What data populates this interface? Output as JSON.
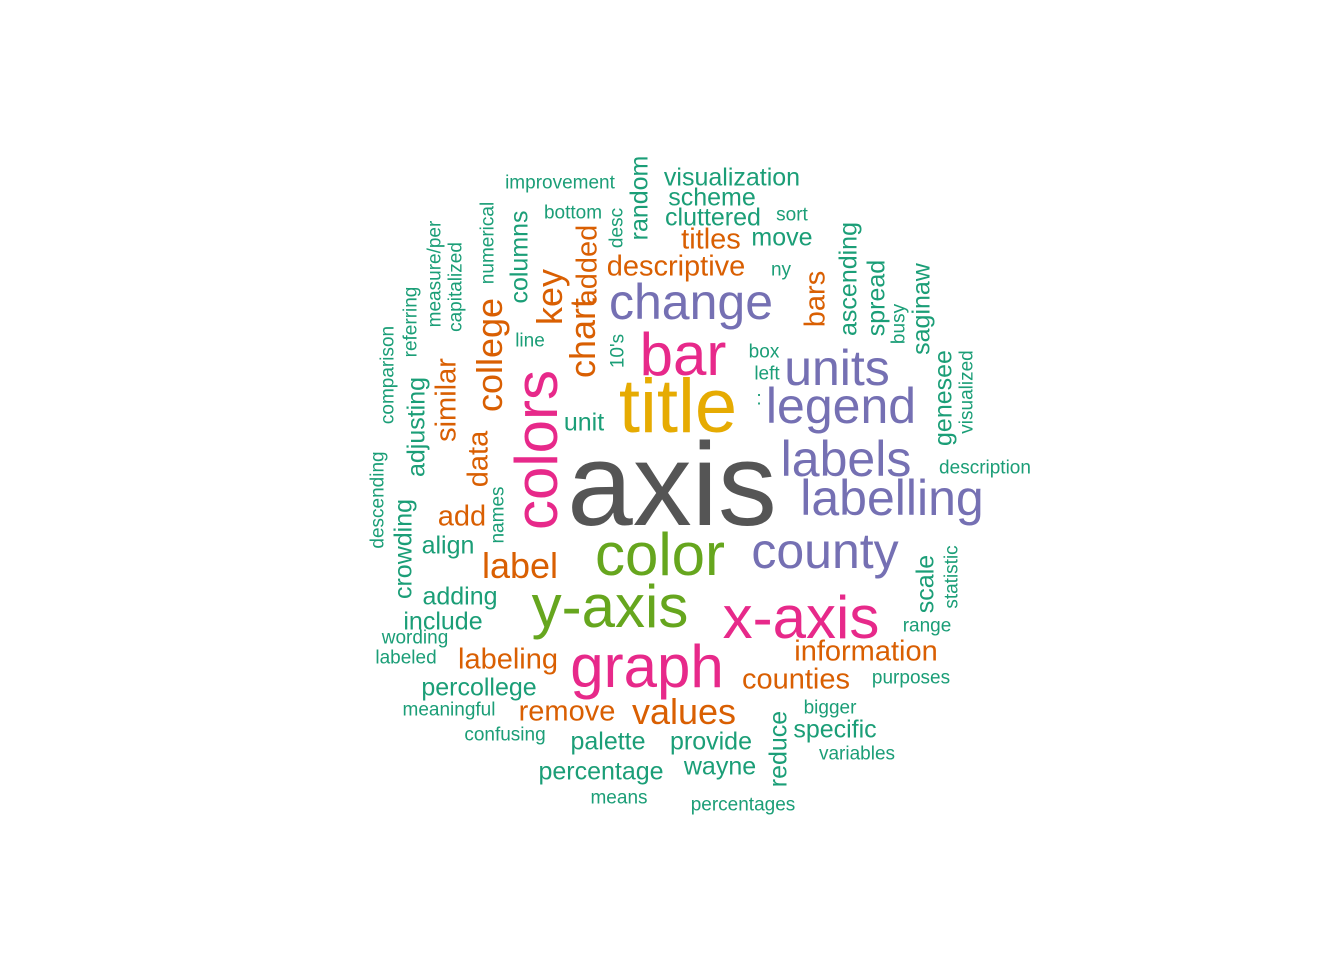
{
  "palette": {
    "gray": "#555555",
    "gold": "#E6AB02",
    "magenta": "#E7298A",
    "green": "#66A61E",
    "purple": "#7570B3",
    "orange": "#D95F02",
    "teal": "#1B9E77"
  },
  "words": [
    {
      "text": "axis",
      "tier": 1,
      "color": "gray",
      "vertical": false
    },
    {
      "text": "title",
      "tier": 2,
      "color": "gold",
      "vertical": false
    },
    {
      "text": "color",
      "tier": 3,
      "color": "green",
      "vertical": false
    },
    {
      "text": "y-axis",
      "tier": 3,
      "color": "green",
      "vertical": false
    },
    {
      "text": "colors",
      "tier": 3,
      "color": "magenta",
      "vertical": true
    },
    {
      "text": "graph",
      "tier": 3,
      "color": "magenta",
      "vertical": false
    },
    {
      "text": "x-axis",
      "tier": 3,
      "color": "magenta",
      "vertical": false
    },
    {
      "text": "bar",
      "tier": 3,
      "color": "magenta",
      "vertical": false
    },
    {
      "text": "change",
      "tier": 4,
      "color": "purple",
      "vertical": false
    },
    {
      "text": "county",
      "tier": 4,
      "color": "purple",
      "vertical": false
    },
    {
      "text": "labelling",
      "tier": 4,
      "color": "purple",
      "vertical": false
    },
    {
      "text": "legend",
      "tier": 4,
      "color": "purple",
      "vertical": false
    },
    {
      "text": "labels",
      "tier": 4,
      "color": "purple",
      "vertical": false
    },
    {
      "text": "units",
      "tier": 4,
      "color": "purple",
      "vertical": false
    },
    {
      "text": "values",
      "tier": 5,
      "color": "orange",
      "vertical": false
    },
    {
      "text": "key",
      "tier": 5,
      "color": "orange",
      "vertical": true
    },
    {
      "text": "chart",
      "tier": 5,
      "color": "orange",
      "vertical": true
    },
    {
      "text": "college",
      "tier": 5,
      "color": "orange",
      "vertical": true
    },
    {
      "text": "label",
      "tier": 5,
      "color": "orange",
      "vertical": false
    },
    {
      "text": "data",
      "tier": 6,
      "color": "orange",
      "vertical": true
    },
    {
      "text": "labeling",
      "tier": 6,
      "color": "orange",
      "vertical": false
    },
    {
      "text": "information",
      "tier": 6,
      "color": "orange",
      "vertical": false
    },
    {
      "text": "counties",
      "tier": 6,
      "color": "orange",
      "vertical": false
    },
    {
      "text": "remove",
      "tier": 6,
      "color": "orange",
      "vertical": false
    },
    {
      "text": "descriptive",
      "tier": 6,
      "color": "orange",
      "vertical": false
    },
    {
      "text": "add",
      "tier": 6,
      "color": "orange",
      "vertical": false
    },
    {
      "text": "similar",
      "tier": 6,
      "color": "orange",
      "vertical": true
    },
    {
      "text": "bars",
      "tier": 6,
      "color": "orange",
      "vertical": true
    },
    {
      "text": "titles",
      "tier": 6,
      "color": "orange",
      "vertical": false
    },
    {
      "text": "added",
      "tier": 6,
      "color": "orange",
      "vertical": true
    },
    {
      "text": "visualization",
      "tier": 7,
      "color": "teal",
      "vertical": false
    },
    {
      "text": "scheme",
      "tier": 7,
      "color": "teal",
      "vertical": false
    },
    {
      "text": "cluttered",
      "tier": 7,
      "color": "teal",
      "vertical": false
    },
    {
      "text": "move",
      "tier": 7,
      "color": "teal",
      "vertical": false
    },
    {
      "text": "random",
      "tier": 7,
      "color": "teal",
      "vertical": true
    },
    {
      "text": "columns",
      "tier": 7,
      "color": "teal",
      "vertical": true
    },
    {
      "text": "ascending",
      "tier": 7,
      "color": "teal",
      "vertical": true
    },
    {
      "text": "spread",
      "tier": 7,
      "color": "teal",
      "vertical": true
    },
    {
      "text": "saginaw",
      "tier": 7,
      "color": "teal",
      "vertical": true
    },
    {
      "text": "genesee",
      "tier": 7,
      "color": "teal",
      "vertical": true
    },
    {
      "text": "unit",
      "tier": 7,
      "color": "teal",
      "vertical": false
    },
    {
      "text": "adjusting",
      "tier": 7,
      "color": "teal",
      "vertical": true
    },
    {
      "text": "crowding",
      "tier": 7,
      "color": "teal",
      "vertical": true
    },
    {
      "text": "align",
      "tier": 7,
      "color": "teal",
      "vertical": false
    },
    {
      "text": "adding",
      "tier": 7,
      "color": "teal",
      "vertical": false
    },
    {
      "text": "include",
      "tier": 7,
      "color": "teal",
      "vertical": false
    },
    {
      "text": "percollege",
      "tier": 7,
      "color": "teal",
      "vertical": false
    },
    {
      "text": "palette",
      "tier": 7,
      "color": "teal",
      "vertical": false
    },
    {
      "text": "provide",
      "tier": 7,
      "color": "teal",
      "vertical": false
    },
    {
      "text": "specific",
      "tier": 7,
      "color": "teal",
      "vertical": false
    },
    {
      "text": "scale",
      "tier": 7,
      "color": "teal",
      "vertical": true
    },
    {
      "text": "reduce",
      "tier": 7,
      "color": "teal",
      "vertical": true
    },
    {
      "text": "wayne",
      "tier": 7,
      "color": "teal",
      "vertical": false
    },
    {
      "text": "percentage",
      "tier": 7,
      "color": "teal",
      "vertical": false
    },
    {
      "text": "improvement",
      "tier": 8,
      "color": "teal",
      "vertical": false
    },
    {
      "text": "bottom",
      "tier": 8,
      "color": "teal",
      "vertical": false
    },
    {
      "text": "desc",
      "tier": 8,
      "color": "teal",
      "vertical": true
    },
    {
      "text": "sort",
      "tier": 8,
      "color": "teal",
      "vertical": false
    },
    {
      "text": "ny",
      "tier": 8,
      "color": "teal",
      "vertical": false
    },
    {
      "text": "numerical",
      "tier": 8,
      "color": "teal",
      "vertical": true
    },
    {
      "text": "measure/per",
      "tier": 8,
      "color": "teal",
      "vertical": true
    },
    {
      "text": "capitalized",
      "tier": 8,
      "color": "teal",
      "vertical": true
    },
    {
      "text": "referring",
      "tier": 8,
      "color": "teal",
      "vertical": true
    },
    {
      "text": "comparison",
      "tier": 8,
      "color": "teal",
      "vertical": true
    },
    {
      "text": "line",
      "tier": 8,
      "color": "teal",
      "vertical": false
    },
    {
      "text": "10's",
      "tier": 8,
      "color": "teal",
      "vertical": true
    },
    {
      "text": "box",
      "tier": 8,
      "color": "teal",
      "vertical": false
    },
    {
      "text": "left",
      "tier": 8,
      "color": "teal",
      "vertical": false
    },
    {
      "text": ":",
      "tier": 8,
      "color": "teal",
      "vertical": false
    },
    {
      "text": "busy",
      "tier": 8,
      "color": "teal",
      "vertical": true
    },
    {
      "text": "visualized",
      "tier": 8,
      "color": "teal",
      "vertical": true
    },
    {
      "text": "description",
      "tier": 8,
      "color": "teal",
      "vertical": false
    },
    {
      "text": "descending",
      "tier": 8,
      "color": "teal",
      "vertical": true
    },
    {
      "text": "names",
      "tier": 8,
      "color": "teal",
      "vertical": true
    },
    {
      "text": "statistic",
      "tier": 8,
      "color": "teal",
      "vertical": true
    },
    {
      "text": "range",
      "tier": 8,
      "color": "teal",
      "vertical": false
    },
    {
      "text": "wording",
      "tier": 8,
      "color": "teal",
      "vertical": false
    },
    {
      "text": "labeled",
      "tier": 8,
      "color": "teal",
      "vertical": false
    },
    {
      "text": "purposes",
      "tier": 8,
      "color": "teal",
      "vertical": false
    },
    {
      "text": "meaningful",
      "tier": 8,
      "color": "teal",
      "vertical": false
    },
    {
      "text": "bigger",
      "tier": 8,
      "color": "teal",
      "vertical": false
    },
    {
      "text": "confusing",
      "tier": 8,
      "color": "teal",
      "vertical": false
    },
    {
      "text": "variables",
      "tier": 8,
      "color": "teal",
      "vertical": false
    },
    {
      "text": "means",
      "tier": 8,
      "color": "teal",
      "vertical": false
    },
    {
      "text": "percentages",
      "tier": 8,
      "color": "teal",
      "vertical": false
    }
  ]
}
